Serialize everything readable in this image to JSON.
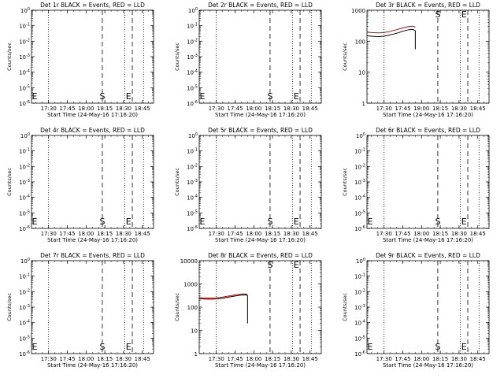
{
  "chart_data": [
    {
      "type": "line",
      "title": "Det 1r BLACK = Events, RED = LLD",
      "ylabel": "Counts/sec",
      "xlabel": "Start Time (24-May-16 17:16:20)",
      "yscale": "log",
      "ylim": [
        1e-06,
        1
      ],
      "ytick_labels": [
        "10^-6",
        "10^-5",
        "10^-4",
        "10^-3",
        "10^-2",
        "10^-1",
        "10^0"
      ],
      "xlim": [
        "17:16:20",
        "18:54:00"
      ],
      "xtick_labels": [
        "17:30",
        "17:45",
        "18:00",
        "18:15",
        "18:30",
        "18:45"
      ],
      "markers": {
        "S": "18:13",
        "E": "18:34"
      },
      "dotted_lines": [
        "17:30",
        "18:31",
        "18:46"
      ],
      "dashed_lines": [
        "18:13",
        "18:37"
      ],
      "series": []
    },
    {
      "type": "line",
      "title": "Det 2r BLACK = Events, RED = LLD",
      "ylabel": "Counts/sec",
      "xlabel": "Start Time (24-May-16 17:16:20)",
      "yscale": "log",
      "ylim": [
        1e-06,
        1
      ],
      "ytick_labels": [
        "10^-6",
        "10^-5",
        "10^-4",
        "10^-3",
        "10^-2",
        "10^-1",
        "10^0"
      ],
      "xlim": [
        "17:16:20",
        "18:54:00"
      ],
      "xtick_labels": [
        "17:30",
        "17:45",
        "18:00",
        "18:15",
        "18:30",
        "18:45"
      ],
      "markers": {
        "S": "18:13",
        "E": "18:34"
      },
      "dotted_lines": [
        "17:30",
        "18:31",
        "18:46"
      ],
      "dashed_lines": [
        "18:13",
        "18:37"
      ],
      "series": []
    },
    {
      "type": "line",
      "title": "Det 3r BLACK = Events, RED = LLD",
      "ylabel": "Counts/sec",
      "xlabel": "Start Time (24-May-16 17:16:20)",
      "yscale": "log",
      "ylim": [
        1,
        1000
      ],
      "ytick_labels": [
        "1",
        "10",
        "100",
        "1000"
      ],
      "xlim": [
        "17:16:20",
        "18:54:00"
      ],
      "xtick_labels": [
        "17:30",
        "17:45",
        "18:00",
        "18:15",
        "18:30",
        "18:45"
      ],
      "markers": {
        "S": "18:13",
        "E": "18:34"
      },
      "dotted_lines": [
        "17:30",
        "18:31",
        "18:46"
      ],
      "dashed_lines": [
        "18:13",
        "18:37"
      ],
      "series": [
        {
          "color": "#000000",
          "x": [
            "17:16:20",
            "17:20",
            "17:25",
            "17:30",
            "17:35",
            "17:40",
            "17:45",
            "17:50",
            "17:53",
            "17:55"
          ],
          "y": [
            150,
            145,
            140,
            145,
            160,
            180,
            210,
            235,
            240,
            220
          ]
        },
        {
          "color": "#cc0000",
          "x": [
            "17:16:20",
            "17:20",
            "17:25",
            "17:30",
            "17:35",
            "17:40",
            "17:45",
            "17:50",
            "17:53",
            "17:55"
          ],
          "y": [
            195,
            190,
            185,
            190,
            210,
            235,
            270,
            300,
            305,
            285
          ]
        }
      ],
      "drop": {
        "x": "17:55",
        "y": 55
      }
    },
    {
      "type": "line",
      "title": "Det 4r BLACK = Events, RED = LLD",
      "ylabel": "Counts/sec",
      "xlabel": "Start Time (24-May-16 17:16:20)",
      "yscale": "log",
      "ylim": [
        1e-06,
        1
      ],
      "ytick_labels": [
        "10^-6",
        "10^-5",
        "10^-4",
        "10^-3",
        "10^-2",
        "10^-1",
        "10^0"
      ],
      "xlim": [
        "17:16:20",
        "18:54:00"
      ],
      "xtick_labels": [
        "17:30",
        "17:45",
        "18:00",
        "18:15",
        "18:30",
        "18:45"
      ],
      "markers": {
        "S": "18:13",
        "E": "18:34"
      },
      "dotted_lines": [
        "17:30",
        "18:31",
        "18:46"
      ],
      "dashed_lines": [
        "18:13",
        "18:37"
      ],
      "series": []
    },
    {
      "type": "line",
      "title": "Det 5r BLACK = Events, RED = LLD",
      "ylabel": "Counts/sec",
      "xlabel": "Start Time (24-May-16 17:16:20)",
      "yscale": "log",
      "ylim": [
        1e-06,
        1
      ],
      "ytick_labels": [
        "10^-6",
        "10^-5",
        "10^-4",
        "10^-3",
        "10^-2",
        "10^-1",
        "10^0"
      ],
      "xlim": [
        "17:16:20",
        "18:54:00"
      ],
      "xtick_labels": [
        "17:30",
        "17:45",
        "18:00",
        "18:15",
        "18:30",
        "18:45"
      ],
      "markers": {
        "S": "18:13",
        "E": "18:34"
      },
      "dotted_lines": [
        "17:30",
        "18:31",
        "18:46"
      ],
      "dashed_lines": [
        "18:13",
        "18:37"
      ],
      "series": []
    },
    {
      "type": "line",
      "title": "Det 6r BLACK = Events, RED = LLD",
      "ylabel": "Counts/sec",
      "xlabel": "Start Time (24-May-16 17:16:20)",
      "yscale": "log",
      "ylim": [
        1e-06,
        1
      ],
      "ytick_labels": [
        "10^-6",
        "10^-5",
        "10^-4",
        "10^-3",
        "10^-2",
        "10^-1",
        "10^0"
      ],
      "xlim": [
        "17:16:20",
        "18:54:00"
      ],
      "xtick_labels": [
        "17:30",
        "17:45",
        "18:00",
        "18:15",
        "18:30",
        "18:45"
      ],
      "markers": {
        "S": "18:13",
        "E": "18:34"
      },
      "dotted_lines": [
        "17:30",
        "18:31",
        "18:46"
      ],
      "dashed_lines": [
        "18:13",
        "18:37"
      ],
      "series": []
    },
    {
      "type": "line",
      "title": "Det 7r BLACK = Events, RED = LLD",
      "ylabel": "Counts/sec",
      "xlabel": "Start Time (24-May-16 17:16:20)",
      "yscale": "log",
      "ylim": [
        1e-06,
        1
      ],
      "ytick_labels": [
        "10^-6",
        "10^-5",
        "10^-4",
        "10^-3",
        "10^-2",
        "10^-1",
        "10^0"
      ],
      "xlim": [
        "17:16:20",
        "18:54:00"
      ],
      "xtick_labels": [
        "17:30",
        "17:45",
        "18:00",
        "18:15",
        "18:30",
        "18:45"
      ],
      "markers": {
        "S": "18:13",
        "E": "18:34"
      },
      "dotted_lines": [
        "17:30",
        "18:31",
        "18:46"
      ],
      "dashed_lines": [
        "18:13",
        "18:37"
      ],
      "series": []
    },
    {
      "type": "line",
      "title": "Det 8r BLACK = Events, RED = LLD",
      "ylabel": "Counts/sec",
      "xlabel": "Start Time (24-May-16 17:16:20)",
      "yscale": "log",
      "ylim": [
        1,
        10000
      ],
      "ytick_labels": [
        "1",
        "10",
        "100",
        "1000",
        "10000"
      ],
      "xlim": [
        "17:16:20",
        "18:54:00"
      ],
      "xtick_labels": [
        "17:30",
        "17:45",
        "18:00",
        "18:15",
        "18:30",
        "18:45"
      ],
      "markers": {
        "S": "18:13",
        "E": "18:34"
      },
      "dotted_lines": [
        "17:30",
        "18:31",
        "18:46"
      ],
      "dashed_lines": [
        "18:13",
        "18:37"
      ],
      "series": [
        {
          "color": "#000000",
          "x": [
            "17:16:20",
            "17:20",
            "17:25",
            "17:30",
            "17:35",
            "17:40",
            "17:45",
            "17:50",
            "17:53",
            "17:55"
          ],
          "y": [
            230,
            225,
            220,
            225,
            240,
            270,
            300,
            330,
            335,
            320
          ]
        },
        {
          "color": "#cc0000",
          "x": [
            "17:16:20",
            "17:20",
            "17:25",
            "17:30",
            "17:35",
            "17:40",
            "17:45",
            "17:50",
            "17:53",
            "17:55"
          ],
          "y": [
            255,
            250,
            245,
            250,
            270,
            300,
            335,
            365,
            370,
            355
          ]
        }
      ],
      "drop": {
        "x": "17:55",
        "y": 20
      }
    },
    {
      "type": "line",
      "title": "Det 9r BLACK = Events, RED = LLD",
      "ylabel": "Counts/sec",
      "xlabel": "Start Time (24-May-16 17:16:20)",
      "yscale": "log",
      "ylim": [
        1e-06,
        1
      ],
      "ytick_labels": [
        "10^-6",
        "10^-5",
        "10^-4",
        "10^-3",
        "10^-2",
        "10^-1",
        "10^0"
      ],
      "xlim": [
        "17:16:20",
        "18:54:00"
      ],
      "xtick_labels": [
        "17:30",
        "17:45",
        "18:00",
        "18:15",
        "18:30",
        "18:45"
      ],
      "markers": {
        "S": "18:13",
        "E": "18:34"
      },
      "dotted_lines": [
        "17:30",
        "18:31",
        "18:46"
      ],
      "dashed_lines": [
        "18:13",
        "18:37"
      ],
      "series": []
    }
  ]
}
